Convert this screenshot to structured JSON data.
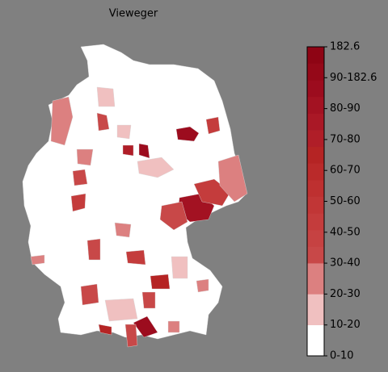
{
  "title": "Vieweger",
  "legend": {
    "labels": [
      "0-10",
      "10-20",
      "20-30",
      "30-40",
      "40-50",
      "50-60",
      "60-70",
      "70-80",
      "80-90",
      "90-182.6",
      "182.6"
    ],
    "colors": [
      "#ffffff",
      "#f0c0c0",
      "#dc8080",
      "#c84848",
      "#c64242",
      "#c43c3c",
      "#c13636",
      "#be3030",
      "#ba2a2a",
      "#b52424",
      "#b01e28",
      "#aa1826",
      "#a31222",
      "#9c0c1e",
      "#950818",
      "#8e0414"
    ]
  }
}
